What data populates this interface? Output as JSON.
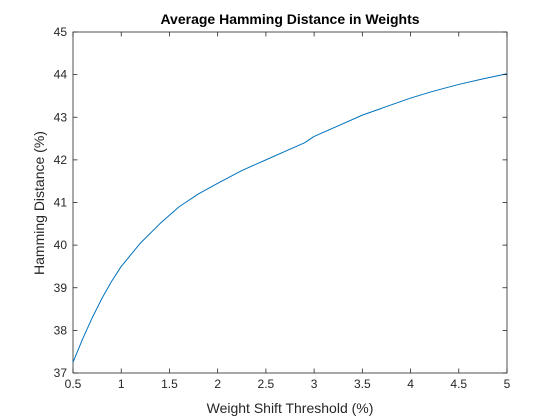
{
  "chart_data": {
    "type": "line",
    "title": "Average Hamming Distance in Weights",
    "xlabel": "Weight Shift Threshold (%)",
    "ylabel": "Hamming Distance (%)",
    "xlim": [
      0.5,
      5
    ],
    "ylim": [
      37,
      45
    ],
    "xticks": [
      0.5,
      1,
      1.5,
      2,
      2.5,
      3,
      3.5,
      4,
      4.5,
      5
    ],
    "xtick_labels": [
      "0.5",
      "1",
      "1.5",
      "2",
      "2.5",
      "3",
      "3.5",
      "4",
      "4.5",
      "5"
    ],
    "yticks": [
      37,
      38,
      39,
      40,
      41,
      42,
      43,
      44,
      45
    ],
    "ytick_labels": [
      "37",
      "38",
      "39",
      "40",
      "41",
      "42",
      "43",
      "44",
      "45"
    ],
    "grid": false,
    "box": true,
    "colors": {
      "line": "#0072bd",
      "axis": "#262626"
    },
    "series": [
      {
        "x": [
          0.5,
          0.6,
          0.7,
          0.8,
          0.9,
          1.0,
          1.2,
          1.4,
          1.6,
          1.8,
          2.0,
          2.25,
          2.5,
          2.75,
          2.9,
          3.0,
          3.25,
          3.5,
          3.75,
          4.0,
          4.25,
          4.5,
          4.75,
          5.0
        ],
        "y": [
          37.25,
          37.8,
          38.3,
          38.75,
          39.15,
          39.5,
          40.05,
          40.5,
          40.9,
          41.2,
          41.45,
          41.75,
          42.0,
          42.25,
          42.4,
          42.55,
          42.8,
          43.05,
          43.25,
          43.45,
          43.62,
          43.77,
          43.9,
          44.02
        ]
      }
    ]
  }
}
